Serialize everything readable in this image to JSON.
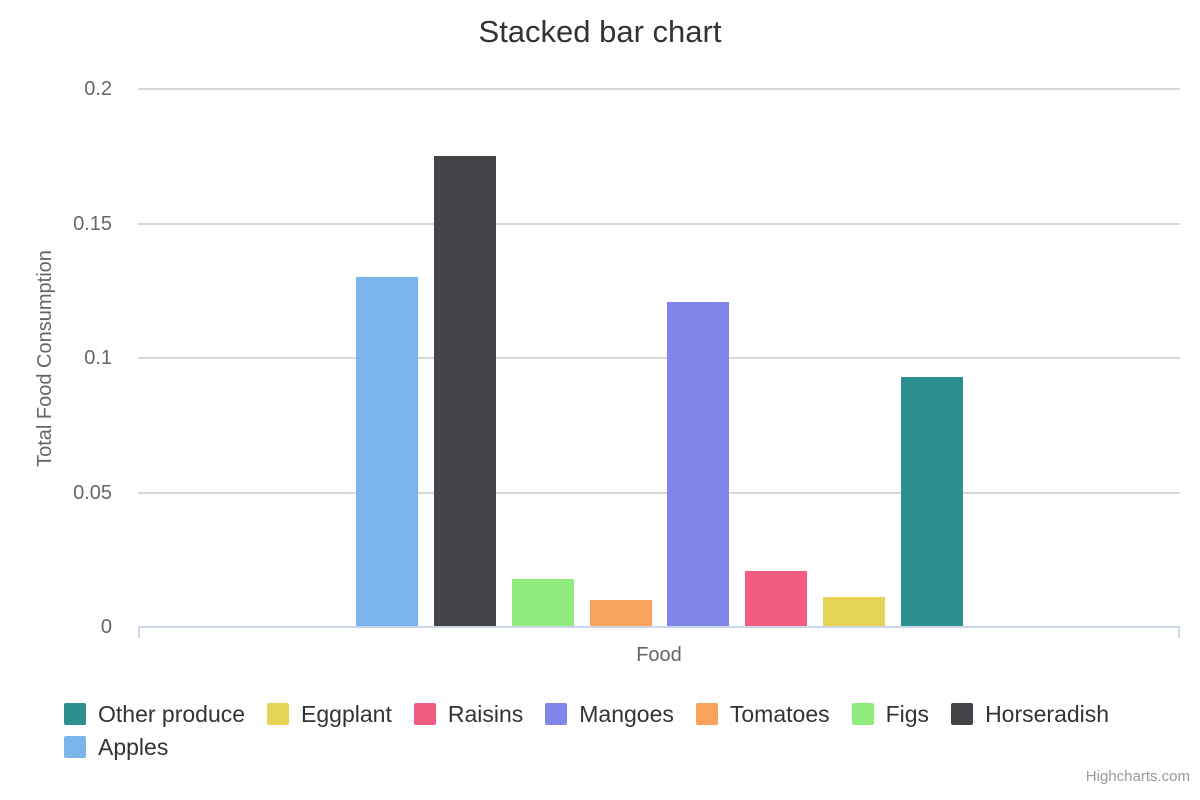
{
  "title": "Stacked bar chart",
  "credits": {
    "label": "Highcharts.com"
  },
  "chart_data": {
    "type": "bar",
    "title": "Stacked bar chart",
    "xlabel": "Food",
    "ylabel": "Total Food Consumption",
    "ylim": [
      0,
      0.2
    ],
    "yticks": [
      0,
      0.05,
      0.1,
      0.15,
      0.2
    ],
    "ytick_labels": [
      "0",
      "0.05",
      "0.1",
      "0.15",
      "0.2"
    ],
    "categories": [
      ""
    ],
    "grid": true,
    "legend_position": "bottom",
    "series": [
      {
        "name": "Apples",
        "color": "#7cb5ec",
        "values": [
          0.13
        ]
      },
      {
        "name": "Horseradish",
        "color": "#434348",
        "values": [
          0.175
        ]
      },
      {
        "name": "Figs",
        "color": "#90ed7d",
        "values": [
          0.018
        ]
      },
      {
        "name": "Tomatoes",
        "color": "#f7a35c",
        "values": [
          0.01
        ]
      },
      {
        "name": "Mangoes",
        "color": "#8085e9",
        "values": [
          0.121
        ]
      },
      {
        "name": "Raisins",
        "color": "#f15c80",
        "values": [
          0.021
        ]
      },
      {
        "name": "Eggplant",
        "color": "#e4d354",
        "values": [
          0.011
        ]
      },
      {
        "name": "Other produce",
        "color": "#2b908f",
        "values": [
          0.093
        ]
      }
    ],
    "legend_order": [
      "Other produce",
      "Eggplant",
      "Raisins",
      "Mangoes",
      "Tomatoes",
      "Figs",
      "Horseradish",
      "Apples"
    ],
    "axis_line_color": "#ccd6eb",
    "gridline_color": "#d8d8d8"
  }
}
